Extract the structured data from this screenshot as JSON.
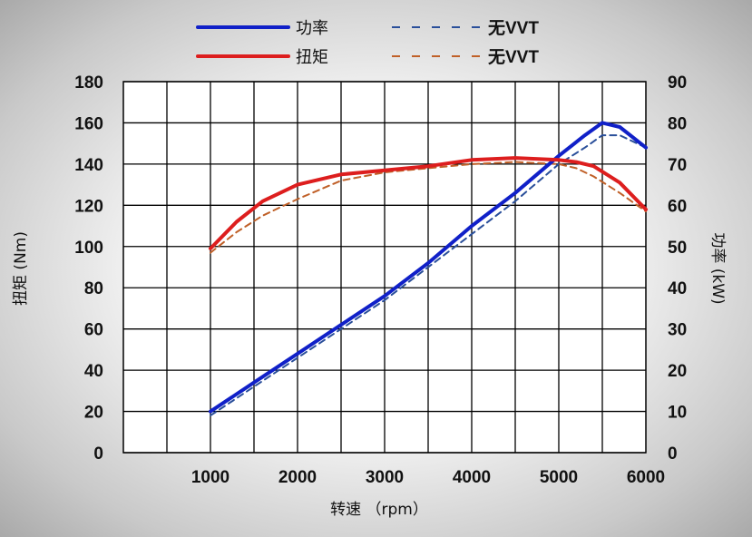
{
  "chart_data": {
    "type": "line",
    "title": "",
    "xlabel": "转速 （rpm）",
    "ylabel_left": "扭矩 (Nm)",
    "ylabel_right": "功率 (kW)",
    "xlim": [
      0,
      6000
    ],
    "x_ticks": [
      1000,
      2000,
      3000,
      4000,
      5000,
      6000
    ],
    "y_left_lim": [
      0,
      180
    ],
    "y_left_ticks": [
      0,
      20,
      40,
      60,
      80,
      100,
      120,
      140,
      160,
      180
    ],
    "y_right_lim": [
      0,
      90
    ],
    "y_right_ticks": [
      0,
      10,
      20,
      30,
      40,
      50,
      60,
      70,
      80,
      90
    ],
    "grid": true,
    "legend_position": "top",
    "series": [
      {
        "name": "功率",
        "axis": "right",
        "color": "#1020c8",
        "style": "solid",
        "x": [
          1000,
          1500,
          2000,
          2500,
          3000,
          3500,
          4000,
          4500,
          5000,
          5300,
          5500,
          5700,
          6000
        ],
        "y": [
          10,
          17,
          24,
          31,
          38,
          46,
          55,
          63,
          72,
          77,
          80,
          79,
          74
        ]
      },
      {
        "name": "无VVT",
        "axis": "right",
        "color": "#2a4f9a",
        "style": "dashed",
        "x": [
          1000,
          1500,
          2000,
          2500,
          3000,
          3500,
          4000,
          4500,
          5000,
          5300,
          5500,
          5700,
          6000
        ],
        "y": [
          9,
          16,
          23,
          30,
          37,
          45,
          53,
          61,
          70,
          74,
          77,
          77,
          74
        ]
      },
      {
        "name": "扭矩",
        "axis": "left",
        "color": "#dd1e1e",
        "style": "solid",
        "x": [
          1000,
          1300,
          1600,
          2000,
          2500,
          3000,
          3500,
          4000,
          4500,
          5000,
          5200,
          5400,
          5700,
          6000
        ],
        "y": [
          99,
          112,
          122,
          130,
          135,
          137,
          139,
          142,
          143,
          142,
          141,
          139,
          131,
          118
        ]
      },
      {
        "name": "无VVT",
        "axis": "left",
        "color": "#c06028",
        "style": "dashed",
        "x": [
          1000,
          1300,
          1600,
          2000,
          2500,
          3000,
          3500,
          4000,
          4500,
          5000,
          5200,
          5400,
          5700,
          6000
        ],
        "y": [
          97,
          107,
          115,
          123,
          132,
          136,
          138,
          140,
          141,
          140,
          138,
          134,
          126,
          117
        ]
      }
    ]
  }
}
